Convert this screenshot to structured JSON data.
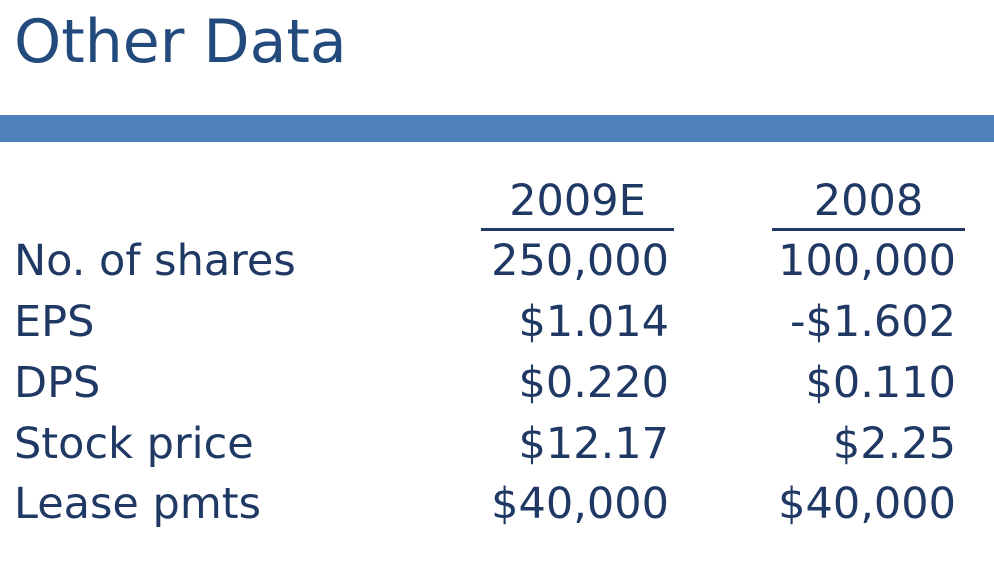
{
  "title": "Other Data",
  "columns": [
    "2009E",
    "2008"
  ],
  "rows": [
    {
      "label": "No. of shares",
      "values": [
        "250,000",
        "100,000"
      ]
    },
    {
      "label": "EPS",
      "values": [
        "$1.014",
        "-$1.602"
      ]
    },
    {
      "label": "DPS",
      "values": [
        "$0.220",
        "$0.110"
      ]
    },
    {
      "label": "Stock price",
      "values": [
        "$12.17",
        "$2.25"
      ]
    },
    {
      "label": "Lease pmts",
      "values": [
        "$40,000",
        "$40,000"
      ]
    }
  ]
}
